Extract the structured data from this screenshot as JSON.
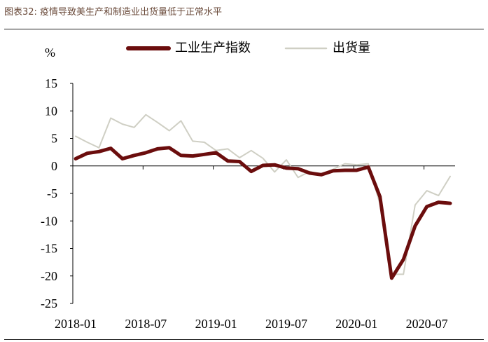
{
  "figure_title": "图表32: 疫情导致美生产和制造业出货量低于正常水平",
  "colors": {
    "industrial": "#6b0d0d",
    "shipments": "#cfcfc4",
    "axis": "#000000",
    "title_text": "#6a4a3a"
  },
  "chart_data": {
    "type": "line",
    "unit": "%",
    "ylim": [
      -25,
      15
    ],
    "yticks": [
      15,
      10,
      5,
      0,
      -5,
      -10,
      -15,
      -20,
      -25
    ],
    "ytick_labels": [
      "15",
      "10",
      "5",
      "0",
      "-5",
      "-10",
      "-15",
      "-20",
      "-25"
    ],
    "xtick_labels": [
      "2018-01",
      "2018-07",
      "2019-01",
      "2019-07",
      "2020-01",
      "2020-07"
    ],
    "x": [
      "2018-01",
      "2018-02",
      "2018-03",
      "2018-04",
      "2018-05",
      "2018-06",
      "2018-07",
      "2018-08",
      "2018-09",
      "2018-10",
      "2018-11",
      "2018-12",
      "2019-01",
      "2019-02",
      "2019-03",
      "2019-04",
      "2019-05",
      "2019-06",
      "2019-07",
      "2019-08",
      "2019-09",
      "2019-10",
      "2019-11",
      "2019-12",
      "2020-01",
      "2020-02",
      "2020-03",
      "2020-04",
      "2020-05",
      "2020-06",
      "2020-07",
      "2020-08",
      "2020-09"
    ],
    "legend_position": "top",
    "grid": false,
    "series": [
      {
        "name": "工业生产指数",
        "values": [
          1.3,
          2.3,
          2.6,
          3.2,
          1.3,
          1.9,
          2.4,
          3.1,
          3.3,
          1.9,
          1.8,
          2.1,
          2.4,
          0.9,
          0.8,
          -1.0,
          0.1,
          0.2,
          -0.4,
          -0.5,
          -1.3,
          -1.6,
          -0.9,
          -0.8,
          -0.8,
          -0.2,
          -5.6,
          -20.4,
          -17.0,
          -10.9,
          -7.4,
          -6.6,
          -6.8
        ]
      },
      {
        "name": "出货量",
        "values": [
          5.4,
          4.3,
          3.3,
          8.7,
          7.6,
          7.0,
          9.3,
          7.9,
          6.4,
          8.2,
          4.5,
          4.3,
          2.8,
          3.1,
          1.5,
          2.8,
          1.4,
          -1.1,
          1.1,
          -2.1,
          -1.0,
          -1.6,
          -0.6,
          0.4,
          0.2,
          0.4,
          -6.9,
          -19.7,
          -19.7,
          -7.1,
          -4.5,
          -5.4,
          -1.9
        ]
      }
    ]
  }
}
